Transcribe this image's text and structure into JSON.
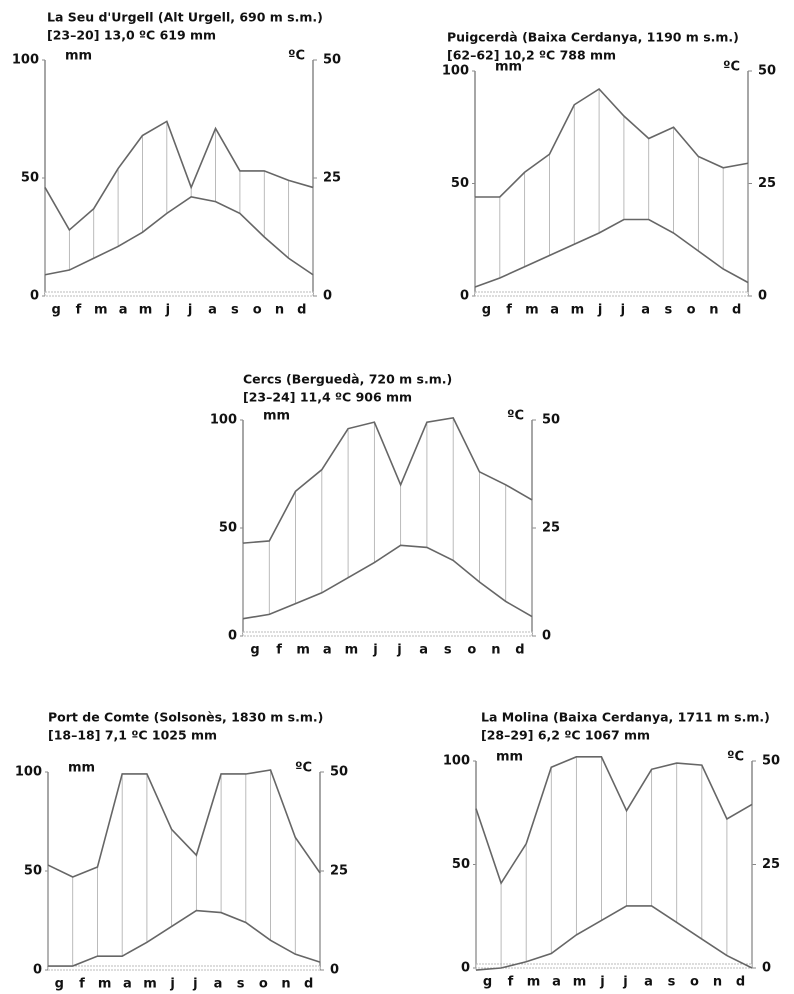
{
  "chart_data": [
    {
      "type": "line",
      "title": "La Seu d'Urgell (Alt Urgell, 690 m s.m.)",
      "subtitle": "[23–20]  13,0 ºC  619  mm",
      "ylabel": "mm",
      "y2label": "ºC",
      "categories": [
        "g",
        "f",
        "m",
        "a",
        "m",
        "j",
        "j",
        "a",
        "s",
        "o",
        "n",
        "d"
      ],
      "series": [
        {
          "color": "#666666",
          "values": [
            46,
            28,
            37,
            54,
            68,
            74,
            46,
            71,
            53,
            53,
            49,
            46
          ]
        },
        {
          "color": "#666666",
          "axis": "y2",
          "values": [
            4.5,
            5.5,
            8,
            10.5,
            13.5,
            17.5,
            21,
            20,
            17.5,
            12.5,
            8,
            4.5
          ]
        }
      ],
      "ylim": [
        0,
        100
      ],
      "yticks": [
        0,
        50,
        100
      ],
      "y2lim": [
        0,
        50
      ],
      "y2ticks": [
        0,
        25,
        50
      ]
    },
    {
      "type": "line",
      "title": "Puigcerdà (Baixa Cerdanya, 1190 m s.m.)",
      "subtitle": "[62–62]  10,2 ºC  788  mm",
      "ylabel": "mm",
      "y2label": "ºC",
      "categories": [
        "g",
        "f",
        "m",
        "a",
        "m",
        "j",
        "j",
        "a",
        "s",
        "o",
        "n",
        "d"
      ],
      "series": [
        {
          "color": "#666666",
          "values": [
            44,
            44,
            55,
            63,
            85,
            92,
            80,
            70,
            75,
            62,
            57,
            59
          ]
        },
        {
          "color": "#666666",
          "axis": "y2",
          "values": [
            2,
            4,
            6.5,
            9,
            11.5,
            14,
            17,
            17,
            14,
            10,
            6,
            3
          ]
        }
      ],
      "ylim": [
        0,
        100
      ],
      "yticks": [
        0,
        50,
        100
      ],
      "y2lim": [
        0,
        50
      ],
      "y2ticks": [
        0,
        25,
        50
      ]
    },
    {
      "type": "line",
      "title": "Cercs (Berguedà, 720 m s.m.)",
      "subtitle": "[23–24]  11,4 ºC  906  mm",
      "ylabel": "mm",
      "y2label": "ºC",
      "categories": [
        "g",
        "f",
        "m",
        "a",
        "m",
        "j",
        "j",
        "a",
        "s",
        "o",
        "n",
        "d"
      ],
      "series": [
        {
          "color": "#666666",
          "values": [
            43,
            44,
            67,
            77,
            96,
            99,
            70,
            99,
            101,
            76,
            70,
            63
          ]
        },
        {
          "color": "#666666",
          "axis": "y2",
          "values": [
            4,
            5,
            7.5,
            10,
            13.5,
            17,
            21,
            20.5,
            17.5,
            12.5,
            8,
            4.5
          ]
        }
      ],
      "ylim": [
        0,
        100
      ],
      "yticks": [
        0,
        50,
        100
      ],
      "y2lim": [
        0,
        50
      ],
      "y2ticks": [
        0,
        25,
        50
      ]
    },
    {
      "type": "line",
      "title": "Port de Comte (Solsonès, 1830 m s.m.)",
      "subtitle": "[18–18]  7,1 ºC  1025  mm",
      "ylabel": "mm",
      "y2label": "ºC",
      "categories": [
        "g",
        "f",
        "m",
        "a",
        "m",
        "j",
        "j",
        "a",
        "s",
        "o",
        "n",
        "d"
      ],
      "series": [
        {
          "color": "#666666",
          "values": [
            53,
            47,
            52,
            99,
            99,
            71,
            58,
            99,
            99,
            101,
            67,
            49
          ]
        },
        {
          "color": "#666666",
          "axis": "y2",
          "values": [
            1,
            1,
            3.5,
            3.5,
            7,
            11,
            15,
            14.5,
            12,
            7.5,
            4,
            2
          ]
        }
      ],
      "ylim": [
        0,
        100
      ],
      "yticks": [
        0,
        50,
        100
      ],
      "y2lim": [
        0,
        50
      ],
      "y2ticks": [
        0,
        25,
        50
      ]
    },
    {
      "type": "line",
      "title": "La Molina (Baixa Cerdanya, 1711 m s.m.)",
      "subtitle": "[28–29]  6,2 ºC  1067  mm",
      "ylabel": "mm",
      "y2label": "ºC",
      "categories": [
        "g",
        "f",
        "m",
        "a",
        "m",
        "j",
        "j",
        "a",
        "s",
        "o",
        "n",
        "d"
      ],
      "series": [
        {
          "color": "#666666",
          "values": [
            77,
            41,
            60,
            97,
            102,
            102,
            76,
            96,
            99,
            98,
            72,
            79
          ]
        },
        {
          "color": "#666666",
          "axis": "y2",
          "values": [
            -0.5,
            0,
            1.5,
            3.5,
            8,
            11.5,
            15,
            15,
            11,
            7,
            3,
            0
          ]
        }
      ],
      "ylim": [
        0,
        100
      ],
      "yticks": [
        0,
        50,
        100
      ],
      "y2lim": [
        0,
        50
      ],
      "y2ticks": [
        0,
        25,
        50
      ]
    }
  ]
}
